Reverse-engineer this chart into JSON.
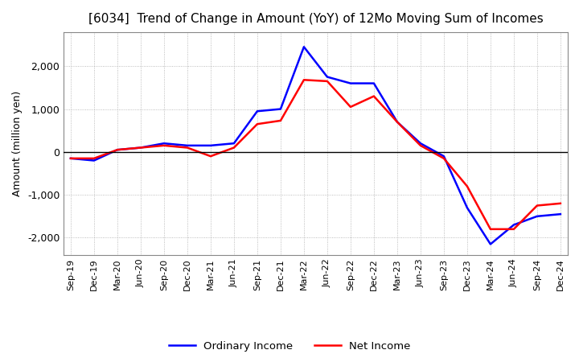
{
  "title": "[6034]  Trend of Change in Amount (YoY) of 12Mo Moving Sum of Incomes",
  "ylabel": "Amount (million yen)",
  "x_labels": [
    "Sep-19",
    "Dec-19",
    "Mar-20",
    "Jun-20",
    "Sep-20",
    "Dec-20",
    "Mar-21",
    "Jun-21",
    "Sep-21",
    "Dec-21",
    "Mar-22",
    "Jun-22",
    "Sep-22",
    "Dec-22",
    "Mar-23",
    "Jun-23",
    "Sep-23",
    "Dec-23",
    "Mar-24",
    "Jun-24",
    "Sep-24",
    "Dec-24"
  ],
  "ordinary_income": [
    -150,
    -200,
    50,
    100,
    200,
    150,
    150,
    200,
    950,
    1000,
    2450,
    1750,
    1600,
    1600,
    700,
    200,
    -100,
    -1300,
    -2150,
    -1700,
    -1500,
    -1450
  ],
  "net_income": [
    -150,
    -150,
    50,
    100,
    150,
    100,
    -100,
    100,
    650,
    730,
    1680,
    1650,
    1050,
    1300,
    700,
    150,
    -150,
    -800,
    -1800,
    -1800,
    -1250,
    -1200
  ],
  "ordinary_color": "#0000ff",
  "net_color": "#ff0000",
  "ylim": [
    -2400,
    2800
  ],
  "yticks": [
    -2000,
    -1000,
    0,
    1000,
    2000
  ],
  "background_color": "#ffffff",
  "grid_color": "#aaaaaa",
  "title_fontsize": 11,
  "legend_labels": [
    "Ordinary Income",
    "Net Income"
  ],
  "linewidth": 1.8
}
